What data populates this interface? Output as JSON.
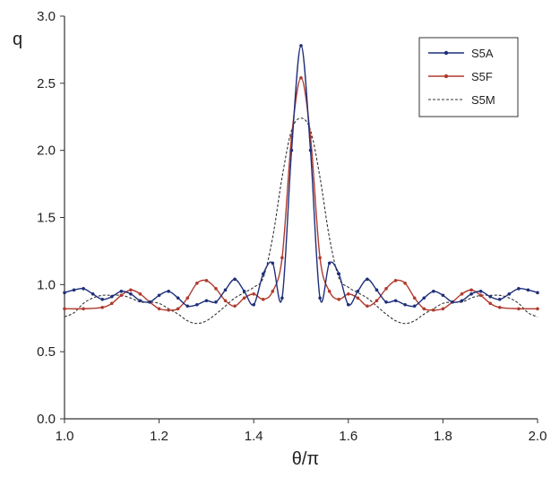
{
  "chart_data": {
    "type": "line",
    "xlabel": "θ/π",
    "ylabel": "q",
    "xlim": [
      1.0,
      2.0
    ],
    "ylim": [
      0.0,
      3.0
    ],
    "x_ticks": [
      "1.0",
      "1.2",
      "1.4",
      "1.6",
      "1.8",
      "2.0"
    ],
    "y_ticks": [
      "0.0",
      "0.5",
      "1.0",
      "1.5",
      "2.0",
      "2.5",
      "3.0"
    ],
    "grid": false,
    "legend_position": "top-right",
    "series": [
      {
        "name": "S5A",
        "color": "#1f2f7a",
        "style": "solid-dots",
        "points": [
          [
            1.0,
            0.94
          ],
          [
            1.02,
            0.96
          ],
          [
            1.04,
            0.97
          ],
          [
            1.06,
            0.93
          ],
          [
            1.08,
            0.89
          ],
          [
            1.1,
            0.91
          ],
          [
            1.12,
            0.95
          ],
          [
            1.14,
            0.93
          ],
          [
            1.16,
            0.88
          ],
          [
            1.18,
            0.87
          ],
          [
            1.2,
            0.92
          ],
          [
            1.22,
            0.95
          ],
          [
            1.24,
            0.9
          ],
          [
            1.26,
            0.84
          ],
          [
            1.28,
            0.85
          ],
          [
            1.3,
            0.88
          ],
          [
            1.32,
            0.87
          ],
          [
            1.34,
            0.96
          ],
          [
            1.36,
            1.04
          ],
          [
            1.38,
            0.95
          ],
          [
            1.4,
            0.85
          ],
          [
            1.42,
            1.08
          ],
          [
            1.44,
            1.16
          ],
          [
            1.46,
            0.9
          ],
          [
            1.48,
            2.0
          ],
          [
            1.5,
            2.78
          ],
          [
            1.52,
            2.0
          ],
          [
            1.54,
            0.9
          ],
          [
            1.56,
            1.16
          ],
          [
            1.58,
            1.08
          ],
          [
            1.6,
            0.85
          ],
          [
            1.62,
            0.95
          ],
          [
            1.64,
            1.04
          ],
          [
            1.66,
            0.96
          ],
          [
            1.68,
            0.87
          ],
          [
            1.7,
            0.88
          ],
          [
            1.72,
            0.85
          ],
          [
            1.74,
            0.84
          ],
          [
            1.76,
            0.9
          ],
          [
            1.78,
            0.95
          ],
          [
            1.8,
            0.92
          ],
          [
            1.82,
            0.87
          ],
          [
            1.84,
            0.88
          ],
          [
            1.86,
            0.93
          ],
          [
            1.88,
            0.95
          ],
          [
            1.9,
            0.91
          ],
          [
            1.92,
            0.89
          ],
          [
            1.94,
            0.93
          ],
          [
            1.96,
            0.97
          ],
          [
            1.98,
            0.96
          ],
          [
            2.0,
            0.94
          ]
        ]
      },
      {
        "name": "S5F",
        "color": "#b03a2e",
        "style": "solid-dots",
        "points": [
          [
            1.0,
            0.82
          ],
          [
            1.04,
            0.82
          ],
          [
            1.08,
            0.83
          ],
          [
            1.1,
            0.86
          ],
          [
            1.12,
            0.92
          ],
          [
            1.14,
            0.96
          ],
          [
            1.16,
            0.93
          ],
          [
            1.18,
            0.87
          ],
          [
            1.2,
            0.82
          ],
          [
            1.22,
            0.81
          ],
          [
            1.24,
            0.82
          ],
          [
            1.26,
            0.9
          ],
          [
            1.28,
            1.01
          ],
          [
            1.3,
            1.03
          ],
          [
            1.32,
            0.97
          ],
          [
            1.34,
            0.88
          ],
          [
            1.36,
            0.84
          ],
          [
            1.38,
            0.9
          ],
          [
            1.4,
            0.93
          ],
          [
            1.42,
            0.89
          ],
          [
            1.44,
            0.95
          ],
          [
            1.46,
            1.2
          ],
          [
            1.48,
            2.1
          ],
          [
            1.5,
            2.54
          ],
          [
            1.52,
            2.1
          ],
          [
            1.54,
            1.2
          ],
          [
            1.56,
            0.95
          ],
          [
            1.58,
            0.89
          ],
          [
            1.6,
            0.93
          ],
          [
            1.62,
            0.9
          ],
          [
            1.64,
            0.84
          ],
          [
            1.66,
            0.88
          ],
          [
            1.68,
            0.97
          ],
          [
            1.7,
            1.03
          ],
          [
            1.72,
            1.01
          ],
          [
            1.74,
            0.9
          ],
          [
            1.76,
            0.82
          ],
          [
            1.78,
            0.81
          ],
          [
            1.8,
            0.82
          ],
          [
            1.82,
            0.87
          ],
          [
            1.84,
            0.93
          ],
          [
            1.86,
            0.96
          ],
          [
            1.88,
            0.92
          ],
          [
            1.9,
            0.86
          ],
          [
            1.92,
            0.83
          ],
          [
            1.96,
            0.82
          ],
          [
            2.0,
            0.82
          ]
        ]
      },
      {
        "name": "S5M",
        "color": "#333333",
        "style": "dashed",
        "points": [
          [
            1.0,
            0.76
          ],
          [
            1.02,
            0.79
          ],
          [
            1.04,
            0.86
          ],
          [
            1.06,
            0.9
          ],
          [
            1.08,
            0.92
          ],
          [
            1.1,
            0.92
          ],
          [
            1.12,
            0.92
          ],
          [
            1.14,
            0.9
          ],
          [
            1.16,
            0.87
          ],
          [
            1.18,
            0.87
          ],
          [
            1.2,
            0.86
          ],
          [
            1.22,
            0.82
          ],
          [
            1.24,
            0.78
          ],
          [
            1.26,
            0.73
          ],
          [
            1.28,
            0.71
          ],
          [
            1.3,
            0.73
          ],
          [
            1.32,
            0.78
          ],
          [
            1.34,
            0.84
          ],
          [
            1.36,
            0.9
          ],
          [
            1.38,
            0.94
          ],
          [
            1.4,
            0.98
          ],
          [
            1.42,
            1.05
          ],
          [
            1.44,
            1.35
          ],
          [
            1.46,
            1.8
          ],
          [
            1.48,
            2.15
          ],
          [
            1.5,
            2.24
          ],
          [
            1.52,
            2.15
          ],
          [
            1.54,
            1.8
          ],
          [
            1.56,
            1.35
          ],
          [
            1.58,
            1.05
          ],
          [
            1.6,
            0.98
          ],
          [
            1.62,
            0.94
          ],
          [
            1.64,
            0.9
          ],
          [
            1.66,
            0.84
          ],
          [
            1.68,
            0.78
          ],
          [
            1.7,
            0.73
          ],
          [
            1.72,
            0.71
          ],
          [
            1.74,
            0.73
          ],
          [
            1.76,
            0.78
          ],
          [
            1.78,
            0.82
          ],
          [
            1.8,
            0.86
          ],
          [
            1.82,
            0.87
          ],
          [
            1.84,
            0.87
          ],
          [
            1.86,
            0.9
          ],
          [
            1.88,
            0.92
          ],
          [
            1.9,
            0.92
          ],
          [
            1.92,
            0.92
          ],
          [
            1.94,
            0.9
          ],
          [
            1.96,
            0.86
          ],
          [
            1.98,
            0.79
          ],
          [
            2.0,
            0.76
          ]
        ]
      }
    ]
  }
}
